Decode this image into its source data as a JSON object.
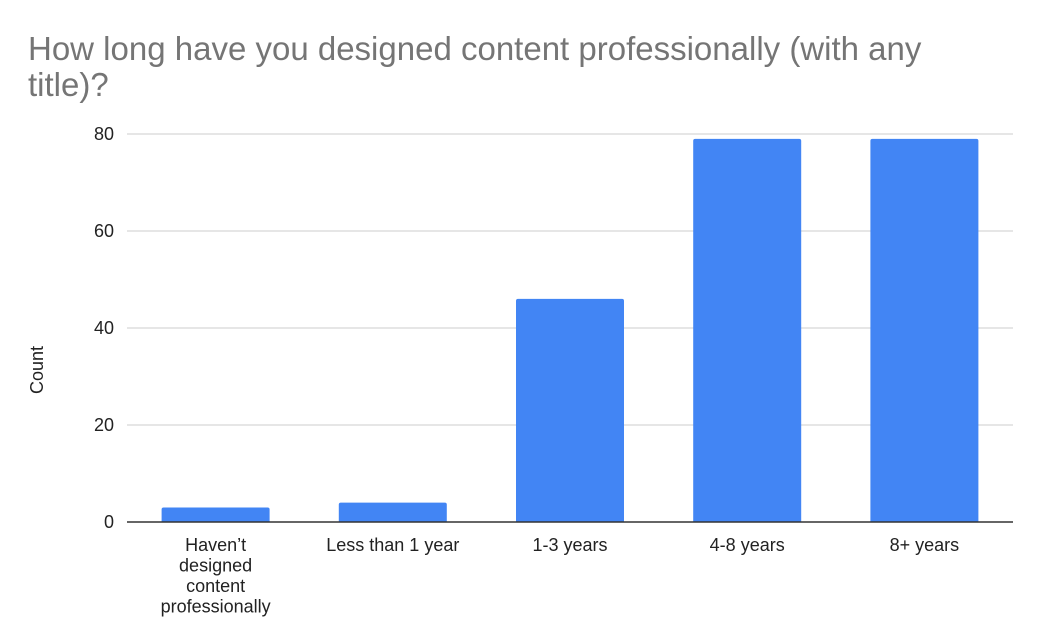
{
  "chart_data": {
    "type": "bar",
    "title": "How long have you designed content professionally (with any title)?",
    "title_lines": [
      "How long have you designed content professionally (with any",
      "title)?"
    ],
    "xlabel": "",
    "ylabel": "Count",
    "categories": [
      "Haven’t designed content professionally",
      "Less than 1 year",
      "1-3 years",
      "4-8 years",
      "8+ years"
    ],
    "category_label_lines": [
      [
        "Haven’t",
        "designed",
        "content",
        "professionally"
      ],
      [
        "Less than 1 year"
      ],
      [
        "1-3 years"
      ],
      [
        "4-8 years"
      ],
      [
        "8+ years"
      ]
    ],
    "values": [
      3,
      4,
      46,
      79,
      79
    ],
    "ylim": [
      0,
      80
    ],
    "yticks": [
      0,
      20,
      40,
      60,
      80
    ],
    "grid": true,
    "legend": "none",
    "colors": {
      "bar": "#4285F4",
      "title": "#757575",
      "text": "#222222",
      "grid": "#cccccc",
      "axis": "#333333"
    }
  }
}
